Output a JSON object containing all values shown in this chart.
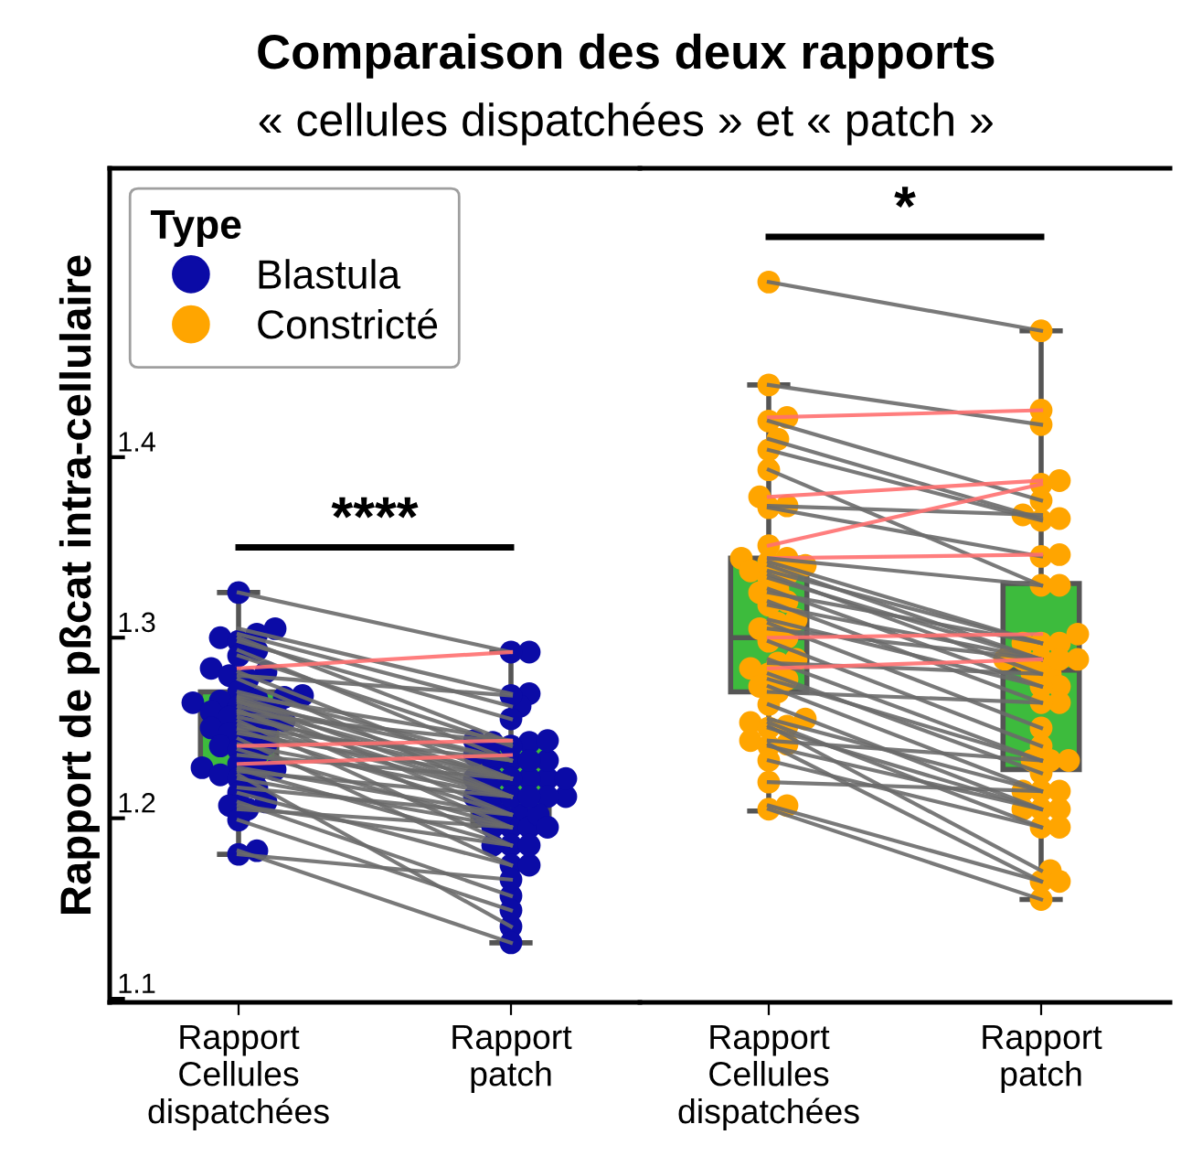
{
  "chart_data": [
    {
      "type": "box",
      "title": "Comparaison des deux rapports",
      "subtitle": "« cellules dispatchées » et « patch »",
      "ylabel": "Rapport de pßcat intra-cellulaire",
      "legend_title": "Type",
      "legend": "top left",
      "grid": false,
      "categories": [
        "Rapport\nCellules\ndispatchées",
        "Rapport\npatch"
      ],
      "ylim": [
        1.098,
        1.56
      ],
      "yticks": [
        1.1,
        1.2,
        1.3,
        1.4
      ],
      "colors": [
        "#3dbb3d",
        "#3dbb3d"
      ],
      "boxes": [
        {
          "low": 1.18,
          "q1": 1.227,
          "median": 1.252,
          "q3": 1.27,
          "high": 1.325
        },
        {
          "low": 1.131,
          "q1": 1.196,
          "median": 1.229,
          "q3": 1.242,
          "high": 1.292
        }
      ],
      "annotations": [
        "****"
      ],
      "series": [
        {
          "type": "scatter",
          "marker": "circle",
          "name": "Blastula",
          "color": "#0b0ba6",
          "x": [
            "Rapport\nCellules\ndispatchées",
            "Rapport\nCellules\ndispatchées",
            "Rapport\nCellules\ndispatchées",
            "Rapport\nCellules\ndispatchées",
            "Rapport\nCellules\ndispatchées",
            "Rapport\nCellules\ndispatchées",
            "Rapport\nCellules\ndispatchées",
            "Rapport\nCellules\ndispatchées",
            "Rapport\nCellules\ndispatchées",
            "Rapport\nCellules\ndispatchées",
            "Rapport\nCellules\ndispatchées",
            "Rapport\nCellules\ndispatchées",
            "Rapport\nCellules\ndispatchées",
            "Rapport\nCellules\ndispatchées",
            "Rapport\nCellules\ndispatchées",
            "Rapport\nCellules\ndispatchées",
            "Rapport\nCellules\ndispatchées",
            "Rapport\nCellules\ndispatchées",
            "Rapport\nCellules\ndispatchées",
            "Rapport\nCellules\ndispatchées",
            "Rapport\nCellules\ndispatchées",
            "Rapport\nCellules\ndispatchées",
            "Rapport\nCellules\ndispatchées",
            "Rapport\nCellules\ndispatchées",
            "Rapport\nCellules\ndispatchées",
            "Rapport\nCellules\ndispatchées",
            "Rapport\nCellules\ndispatchées",
            "Rapport\nCellules\ndispatchées",
            "Rapport\nCellules\ndispatchées",
            "Rapport\nCellules\ndispatchées",
            "Rapport\nCellules\ndispatchées",
            "Rapport\nCellules\ndispatchées",
            "Rapport\nCellules\ndispatchées",
            "Rapport\nCellules\ndispatchées",
            "Rapport\nCellules\ndispatchées",
            "Rapport\nCellules\ndispatchées",
            "Rapport\nCellules\ndispatchées",
            "Rapport\nCellules\ndispatchées",
            "Rapport\nCellules\ndispatchées",
            "Rapport\nCellules\ndispatchées",
            "Rapport\nCellules\ndispatchées",
            "Rapport\nCellules\ndispatchées",
            "Rapport\nCellules\ndispatchées",
            "Rapport\nCellules\ndispatchées",
            "Rapport\nCellules\ndispatchées",
            "Rapport\nCellules\ndispatchées",
            "Rapport\npatch",
            "Rapport\npatch",
            "Rapport\npatch",
            "Rapport\npatch",
            "Rapport\npatch",
            "Rapport\npatch",
            "Rapport\npatch",
            "Rapport\npatch",
            "Rapport\npatch",
            "Rapport\npatch",
            "Rapport\npatch",
            "Rapport\npatch",
            "Rapport\npatch",
            "Rapport\npatch",
            "Rapport\npatch",
            "Rapport\npatch",
            "Rapport\npatch",
            "Rapport\npatch",
            "Rapport\npatch",
            "Rapport\npatch",
            "Rapport\npatch",
            "Rapport\npatch",
            "Rapport\npatch",
            "Rapport\npatch",
            "Rapport\npatch",
            "Rapport\npatch",
            "Rapport\npatch",
            "Rapport\npatch",
            "Rapport\npatch",
            "Rapport\npatch",
            "Rapport\npatch",
            "Rapport\npatch",
            "Rapport\npatch",
            "Rapport\npatch",
            "Rapport\npatch",
            "Rapport\npatch",
            "Rapport\npatch",
            "Rapport\npatch",
            "Rapport\npatch",
            "Rapport\npatch",
            "Rapport\npatch",
            "Rapport\npatch",
            "Rapport\npatch",
            "Rapport\npatch",
            "Rapport\npatch",
            "Rapport\npatch"
          ],
          "values": [
            1.325,
            1.305,
            1.302,
            1.3,
            1.298,
            1.293,
            1.29,
            1.283,
            1.281,
            1.279,
            1.277,
            1.27,
            1.268,
            1.267,
            1.266,
            1.265,
            1.264,
            1.262,
            1.26,
            1.259,
            1.258,
            1.256,
            1.254,
            1.252,
            1.25,
            1.249,
            1.247,
            1.244,
            1.241,
            1.24,
            1.238,
            1.235,
            1.23,
            1.228,
            1.227,
            1.226,
            1.224,
            1.222,
            1.217,
            1.214,
            1.209,
            1.207,
            1.205,
            1.199,
            1.182,
            1.18,
            1.292,
            1.269,
            1.262,
            1.242,
            1.255,
            1.232,
            1.24,
            1.292,
            1.222,
            1.268,
            1.212,
            1.232,
            1.243,
            1.222,
            1.212,
            1.202,
            1.232,
            1.222,
            1.195,
            1.212,
            1.242,
            1.222,
            1.185,
            1.212,
            1.232,
            1.202,
            1.222,
            1.174,
            1.212,
            1.243,
            1.195,
            1.222,
            1.235,
            1.202,
            1.185,
            1.212,
            1.14,
            1.195,
            1.202,
            1.174,
            1.157,
            1.185,
            1.195,
            1.149,
            1.131,
            1.166
          ]
        },
        {
          "type": "line",
          "color": "#6a6a6a",
          "values": [
            1.325,
            1.292
          ]
        },
        {
          "type": "line",
          "color": "#6a6a6a",
          "values": [
            1.305,
            1.269
          ]
        },
        {
          "type": "line",
          "color": "#6a6a6a",
          "values": [
            1.302,
            1.262
          ]
        },
        {
          "type": "line",
          "color": "#6a6a6a",
          "values": [
            1.3,
            1.242
          ]
        },
        {
          "type": "line",
          "color": "#6a6a6a",
          "values": [
            1.298,
            1.255
          ]
        },
        {
          "type": "line",
          "color": "#6a6a6a",
          "values": [
            1.293,
            1.232
          ]
        },
        {
          "type": "line",
          "color": "#6a6a6a",
          "values": [
            1.29,
            1.24
          ]
        },
        {
          "type": "line",
          "color": "#ff7070",
          "values": [
            1.283,
            1.292
          ]
        },
        {
          "type": "line",
          "color": "#6a6a6a",
          "values": [
            1.281,
            1.222
          ]
        },
        {
          "type": "line",
          "color": "#6a6a6a",
          "values": [
            1.279,
            1.268
          ]
        },
        {
          "type": "line",
          "color": "#6a6a6a",
          "values": [
            1.277,
            1.212
          ]
        },
        {
          "type": "line",
          "color": "#6a6a6a",
          "values": [
            1.27,
            1.232
          ]
        },
        {
          "type": "line",
          "color": "#6a6a6a",
          "values": [
            1.268,
            1.243
          ]
        },
        {
          "type": "line",
          "color": "#6a6a6a",
          "values": [
            1.267,
            1.222
          ]
        },
        {
          "type": "line",
          "color": "#6a6a6a",
          "values": [
            1.266,
            1.212
          ]
        },
        {
          "type": "line",
          "color": "#6a6a6a",
          "values": [
            1.265,
            1.202
          ]
        },
        {
          "type": "line",
          "color": "#6a6a6a",
          "values": [
            1.264,
            1.232
          ]
        },
        {
          "type": "line",
          "color": "#6a6a6a",
          "values": [
            1.262,
            1.222
          ]
        },
        {
          "type": "line",
          "color": "#6a6a6a",
          "values": [
            1.26,
            1.195
          ]
        },
        {
          "type": "line",
          "color": "#6a6a6a",
          "values": [
            1.259,
            1.212
          ]
        },
        {
          "type": "line",
          "color": "#6a6a6a",
          "values": [
            1.258,
            1.242
          ]
        },
        {
          "type": "line",
          "color": "#6a6a6a",
          "values": [
            1.256,
            1.222
          ]
        },
        {
          "type": "line",
          "color": "#6a6a6a",
          "values": [
            1.254,
            1.185
          ]
        },
        {
          "type": "line",
          "color": "#6a6a6a",
          "values": [
            1.252,
            1.212
          ]
        },
        {
          "type": "line",
          "color": "#6a6a6a",
          "values": [
            1.25,
            1.232
          ]
        },
        {
          "type": "line",
          "color": "#6a6a6a",
          "values": [
            1.249,
            1.202
          ]
        },
        {
          "type": "line",
          "color": "#6a6a6a",
          "values": [
            1.247,
            1.222
          ]
        },
        {
          "type": "line",
          "color": "#6a6a6a",
          "values": [
            1.244,
            1.174
          ]
        },
        {
          "type": "line",
          "color": "#6a6a6a",
          "values": [
            1.241,
            1.212
          ]
        },
        {
          "type": "line",
          "color": "#ff7070",
          "values": [
            1.24,
            1.243
          ]
        },
        {
          "type": "line",
          "color": "#6a6a6a",
          "values": [
            1.238,
            1.195
          ]
        },
        {
          "type": "line",
          "color": "#6a6a6a",
          "values": [
            1.235,
            1.222
          ]
        },
        {
          "type": "line",
          "color": "#ff7070",
          "values": [
            1.23,
            1.235
          ]
        },
        {
          "type": "line",
          "color": "#6a6a6a",
          "values": [
            1.228,
            1.202
          ]
        },
        {
          "type": "line",
          "color": "#6a6a6a",
          "values": [
            1.227,
            1.185
          ]
        },
        {
          "type": "line",
          "color": "#6a6a6a",
          "values": [
            1.226,
            1.212
          ]
        },
        {
          "type": "line",
          "color": "#6a6a6a",
          "values": [
            1.224,
            1.14
          ]
        },
        {
          "type": "line",
          "color": "#6a6a6a",
          "values": [
            1.222,
            1.195
          ]
        },
        {
          "type": "line",
          "color": "#6a6a6a",
          "values": [
            1.217,
            1.202
          ]
        },
        {
          "type": "line",
          "color": "#6a6a6a",
          "values": [
            1.214,
            1.174
          ]
        },
        {
          "type": "line",
          "color": "#6a6a6a",
          "values": [
            1.209,
            1.157
          ]
        },
        {
          "type": "line",
          "color": "#6a6a6a",
          "values": [
            1.207,
            1.185
          ]
        },
        {
          "type": "line",
          "color": "#6a6a6a",
          "values": [
            1.205,
            1.195
          ]
        },
        {
          "type": "line",
          "color": "#6a6a6a",
          "values": [
            1.199,
            1.149
          ]
        },
        {
          "type": "line",
          "color": "#6a6a6a",
          "values": [
            1.182,
            1.131
          ]
        },
        {
          "type": "line",
          "color": "#6a6a6a",
          "values": [
            1.18,
            1.166
          ]
        }
      ]
    },
    {
      "type": "box",
      "tick_labels": "x",
      "grid": false,
      "categories": [
        "Rapport\nCellules\ndispatchées",
        "Rapport\npatch"
      ],
      "ylim": [
        1.098,
        1.56
      ],
      "yticks": [
        1.1,
        1.2,
        1.3,
        1.4
      ],
      "colors": [
        "#3dbb3d",
        "#3dbb3d"
      ],
      "boxes": [
        {
          "low": 1.204,
          "q1": 1.27,
          "median": 1.3,
          "q3": 1.344,
          "high": 1.44
        },
        {
          "low": 1.155,
          "q1": 1.227,
          "median": 1.282,
          "q3": 1.33,
          "high": 1.47
        }
      ],
      "annotations": [
        "*"
      ],
      "series": [
        {
          "type": "scatter",
          "marker": "circle",
          "name": "Constricté",
          "color": "#ffa500",
          "x": [
            "Rapport\nCellules\ndispatchées",
            "Rapport\nCellules\ndispatchées",
            "Rapport\nCellules\ndispatchées",
            "Rapport\nCellules\ndispatchées",
            "Rapport\nCellules\ndispatchées",
            "Rapport\nCellules\ndispatchées",
            "Rapport\nCellules\ndispatchées",
            "Rapport\nCellules\ndispatchées",
            "Rapport\nCellules\ndispatchées",
            "Rapport\nCellules\ndispatchées",
            "Rapport\nCellules\ndispatchées",
            "Rapport\nCellules\ndispatchées",
            "Rapport\nCellules\ndispatchées",
            "Rapport\nCellules\ndispatchées",
            "Rapport\nCellules\ndispatchées",
            "Rapport\nCellules\ndispatchées",
            "Rapport\nCellules\ndispatchées",
            "Rapport\nCellules\ndispatchées",
            "Rapport\nCellules\ndispatchées",
            "Rapport\nCellules\ndispatchées",
            "Rapport\nCellules\ndispatchées",
            "Rapport\nCellules\ndispatchées",
            "Rapport\nCellules\ndispatchées",
            "Rapport\nCellules\ndispatchées",
            "Rapport\nCellules\ndispatchées",
            "Rapport\nCellules\ndispatchées",
            "Rapport\nCellules\ndispatchées",
            "Rapport\nCellules\ndispatchées",
            "Rapport\nCellules\ndispatchées",
            "Rapport\nCellules\ndispatchées",
            "Rapport\nCellules\ndispatchées",
            "Rapport\nCellules\ndispatchées",
            "Rapport\nCellules\ndispatchées",
            "Rapport\nCellules\ndispatchées",
            "Rapport\nCellules\ndispatchées",
            "Rapport\nCellules\ndispatchées",
            "Rapport\nCellules\ndispatchées",
            "Rapport\nCellules\ndispatchées",
            "Rapport\nCellules\ndispatchées",
            "Rapport\nCellules\ndispatchées",
            "Rapport\nCellules\ndispatchées",
            "Rapport\nCellules\ndispatchées",
            "Rapport\nCellules\ndispatchées",
            "Rapport\nCellules\ndispatchées",
            "Rapport\nCellules\ndispatchées",
            "Rapport\nCellules\ndispatchées",
            "Rapport\npatch",
            "Rapport\npatch",
            "Rapport\npatch",
            "Rapport\npatch",
            "Rapport\npatch",
            "Rapport\npatch",
            "Rapport\npatch",
            "Rapport\npatch",
            "Rapport\npatch",
            "Rapport\npatch",
            "Rapport\npatch",
            "Rapport\npatch",
            "Rapport\npatch",
            "Rapport\npatch",
            "Rapport\npatch",
            "Rapport\npatch",
            "Rapport\npatch",
            "Rapport\npatch",
            "Rapport\npatch",
            "Rapport\npatch",
            "Rapport\npatch",
            "Rapport\npatch",
            "Rapport\npatch",
            "Rapport\npatch",
            "Rapport\npatch",
            "Rapport\npatch",
            "Rapport\npatch",
            "Rapport\npatch",
            "Rapport\npatch",
            "Rapport\npatch",
            "Rapport\npatch",
            "Rapport\npatch",
            "Rapport\npatch",
            "Rapport\npatch",
            "Rapport\npatch",
            "Rapport\npatch",
            "Rapport\npatch",
            "Rapport\npatch",
            "Rapport\npatch",
            "Rapport\npatch",
            "Rapport\npatch",
            "Rapport\npatch",
            "Rapport\npatch",
            "Rapport\npatch",
            "Rapport\npatch",
            "Rapport\npatch"
          ],
          "values": [
            1.497,
            1.44,
            1.422,
            1.42,
            1.41,
            1.404,
            1.393,
            1.378,
            1.373,
            1.372,
            1.351,
            1.344,
            1.344,
            1.342,
            1.34,
            1.337,
            1.335,
            1.333,
            1.327,
            1.325,
            1.32,
            1.318,
            1.31,
            1.308,
            1.305,
            1.3,
            1.298,
            1.288,
            1.286,
            1.283,
            1.28,
            1.277,
            1.273,
            1.27,
            1.263,
            1.255,
            1.253,
            1.251,
            1.25,
            1.243,
            1.241,
            1.24,
            1.232,
            1.22,
            1.207,
            1.205,
            1.47,
            1.418,
            1.426,
            1.376,
            1.366,
            1.365,
            1.329,
            1.387,
            1.368,
            1.345,
            1.385,
            1.346,
            1.329,
            1.297,
            1.288,
            1.297,
            1.28,
            1.288,
            1.273,
            1.297,
            1.264,
            1.288,
            1.273,
            1.25,
            1.288,
            1.302,
            1.24,
            1.232,
            1.28,
            1.288,
            1.225,
            1.232,
            1.215,
            1.264,
            1.205,
            1.215,
            1.195,
            1.171,
            1.205,
            1.232,
            1.165,
            1.205,
            1.195,
            1.215,
            1.165,
            1.155
          ]
        },
        {
          "type": "line",
          "color": "#6a6a6a",
          "values": [
            1.497,
            1.47
          ]
        },
        {
          "type": "line",
          "color": "#6a6a6a",
          "values": [
            1.44,
            1.418
          ]
        },
        {
          "type": "line",
          "color": "#ff7070",
          "values": [
            1.422,
            1.426
          ]
        },
        {
          "type": "line",
          "color": "#6a6a6a",
          "values": [
            1.42,
            1.376
          ]
        },
        {
          "type": "line",
          "color": "#6a6a6a",
          "values": [
            1.41,
            1.366
          ]
        },
        {
          "type": "line",
          "color": "#6a6a6a",
          "values": [
            1.404,
            1.365
          ]
        },
        {
          "type": "line",
          "color": "#6a6a6a",
          "values": [
            1.393,
            1.329
          ]
        },
        {
          "type": "line",
          "color": "#ff7070",
          "values": [
            1.378,
            1.387
          ]
        },
        {
          "type": "line",
          "color": "#6a6a6a",
          "values": [
            1.373,
            1.368
          ]
        },
        {
          "type": "line",
          "color": "#6a6a6a",
          "values": [
            1.372,
            1.345
          ]
        },
        {
          "type": "line",
          "color": "#ff7070",
          "values": [
            1.351,
            1.385
          ]
        },
        {
          "type": "line",
          "color": "#ff7070",
          "values": [
            1.344,
            1.346
          ]
        },
        {
          "type": "line",
          "color": "#6a6a6a",
          "values": [
            1.344,
            1.329
          ]
        },
        {
          "type": "line",
          "color": "#6a6a6a",
          "values": [
            1.342,
            1.297
          ]
        },
        {
          "type": "line",
          "color": "#6a6a6a",
          "values": [
            1.34,
            1.288
          ]
        },
        {
          "type": "line",
          "color": "#6a6a6a",
          "values": [
            1.337,
            1.297
          ]
        },
        {
          "type": "line",
          "color": "#6a6a6a",
          "values": [
            1.335,
            1.28
          ]
        },
        {
          "type": "line",
          "color": "#6a6a6a",
          "values": [
            1.333,
            1.288
          ]
        },
        {
          "type": "line",
          "color": "#6a6a6a",
          "values": [
            1.327,
            1.273
          ]
        },
        {
          "type": "line",
          "color": "#6a6a6a",
          "values": [
            1.325,
            1.297
          ]
        },
        {
          "type": "line",
          "color": "#6a6a6a",
          "values": [
            1.32,
            1.264
          ]
        },
        {
          "type": "line",
          "color": "#6a6a6a",
          "values": [
            1.318,
            1.288
          ]
        },
        {
          "type": "line",
          "color": "#6a6a6a",
          "values": [
            1.31,
            1.273
          ]
        },
        {
          "type": "line",
          "color": "#6a6a6a",
          "values": [
            1.308,
            1.25
          ]
        },
        {
          "type": "line",
          "color": "#6a6a6a",
          "values": [
            1.305,
            1.288
          ]
        },
        {
          "type": "line",
          "color": "#ff7070",
          "values": [
            1.3,
            1.302
          ]
        },
        {
          "type": "line",
          "color": "#6a6a6a",
          "values": [
            1.298,
            1.24
          ]
        },
        {
          "type": "line",
          "color": "#6a6a6a",
          "values": [
            1.288,
            1.232
          ]
        },
        {
          "type": "line",
          "color": "#6a6a6a",
          "values": [
            1.286,
            1.28
          ]
        },
        {
          "type": "line",
          "color": "#ff7070",
          "values": [
            1.283,
            1.288
          ]
        },
        {
          "type": "line",
          "color": "#6a6a6a",
          "values": [
            1.28,
            1.225
          ]
        },
        {
          "type": "line",
          "color": "#6a6a6a",
          "values": [
            1.277,
            1.232
          ]
        },
        {
          "type": "line",
          "color": "#6a6a6a",
          "values": [
            1.273,
            1.215
          ]
        },
        {
          "type": "line",
          "color": "#6a6a6a",
          "values": [
            1.27,
            1.264
          ]
        },
        {
          "type": "line",
          "color": "#6a6a6a",
          "values": [
            1.263,
            1.205
          ]
        },
        {
          "type": "line",
          "color": "#6a6a6a",
          "values": [
            1.255,
            1.215
          ]
        },
        {
          "type": "line",
          "color": "#6a6a6a",
          "values": [
            1.253,
            1.195
          ]
        },
        {
          "type": "line",
          "color": "#6a6a6a",
          "values": [
            1.251,
            1.171
          ]
        },
        {
          "type": "line",
          "color": "#6a6a6a",
          "values": [
            1.25,
            1.205
          ]
        },
        {
          "type": "line",
          "color": "#6a6a6a",
          "values": [
            1.243,
            1.232
          ]
        },
        {
          "type": "line",
          "color": "#6a6a6a",
          "values": [
            1.241,
            1.165
          ]
        },
        {
          "type": "line",
          "color": "#6a6a6a",
          "values": [
            1.24,
            1.205
          ]
        },
        {
          "type": "line",
          "color": "#6a6a6a",
          "values": [
            1.232,
            1.195
          ]
        },
        {
          "type": "line",
          "color": "#6a6a6a",
          "values": [
            1.22,
            1.215
          ]
        },
        {
          "type": "line",
          "color": "#6a6a6a",
          "values": [
            1.207,
            1.165
          ]
        },
        {
          "type": "line",
          "color": "#6a6a6a",
          "values": [
            1.205,
            1.155
          ]
        }
      ]
    }
  ]
}
